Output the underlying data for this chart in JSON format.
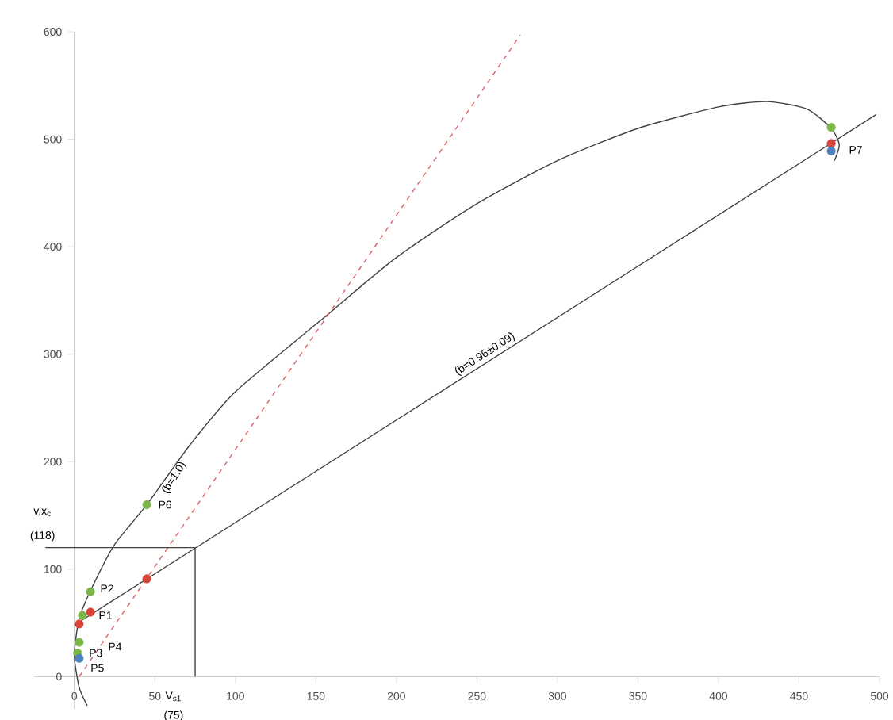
{
  "chart_data": {
    "type": "line",
    "xlim": [
      -25,
      500
    ],
    "ylim": [
      -30,
      600
    ],
    "xticks": [
      0,
      50,
      100,
      150,
      200,
      250,
      300,
      350,
      400,
      450,
      500
    ],
    "yticks": [
      0,
      100,
      200,
      300,
      400,
      500,
      600
    ],
    "grid": false,
    "series": [
      {
        "type": "line",
        "color": "#404040",
        "x": [
          8,
          3,
          0,
          3,
          11,
          25,
          45,
          72,
          100,
          155,
          200,
          250,
          300,
          350,
          400,
          430,
          455,
          470,
          475,
          472
        ],
        "values": [
          -27,
          -10,
          20,
          54,
          83,
          123,
          160,
          216,
          265,
          334,
          390,
          440,
          480,
          510,
          530,
          535,
          528,
          510,
          495,
          480
        ]
      },
      {
        "type": "line",
        "color": "#404040",
        "x": [
          0,
          498
        ],
        "values": [
          48,
          523
        ]
      },
      {
        "type": "line",
        "color": "#e06060",
        "line_style": "dashed",
        "x": [
          3,
          277
        ],
        "values": [
          0,
          597
        ]
      },
      {
        "type": "line",
        "color": "#404040",
        "x": [
          -18,
          75
        ],
        "values": [
          120,
          120
        ]
      },
      {
        "type": "line",
        "color": "#404040",
        "x": [
          75,
          75
        ],
        "values": [
          120,
          0
        ]
      },
      {
        "type": "scatter",
        "color": "#7ab648",
        "x": [
          45,
          10,
          5,
          3,
          2,
          470
        ],
        "values": [
          160,
          79,
          57,
          32,
          22,
          511
        ]
      },
      {
        "type": "scatter",
        "color": "#d9443a",
        "x": [
          10,
          3,
          45,
          470
        ],
        "values": [
          60,
          49,
          91,
          496
        ]
      },
      {
        "type": "scatter",
        "color": "#4f81bd",
        "x": [
          3,
          470
        ],
        "values": [
          17,
          489
        ]
      }
    ],
    "annotations": [
      {
        "text": "(b=1.0)",
        "x": 62,
        "y": 185
      },
      {
        "text": "(b=0.96±0.09)",
        "x": 255,
        "y": 300
      },
      {
        "text": "P1",
        "x": 10,
        "y": 60
      },
      {
        "text": "P2",
        "x": 10,
        "y": 79
      },
      {
        "text": "P3",
        "x": 2,
        "y": 22
      },
      {
        "text": "P4",
        "x": 10,
        "y": 45
      },
      {
        "text": "P5",
        "x": 3,
        "y": 8
      },
      {
        "text": "P6",
        "x": 45,
        "y": 160
      },
      {
        "text": "P7",
        "x": 470,
        "y": 496
      },
      "v,x$_{c}$",
      "(118)",
      "V$_{s1}$",
      "(75)"
    ]
  }
}
